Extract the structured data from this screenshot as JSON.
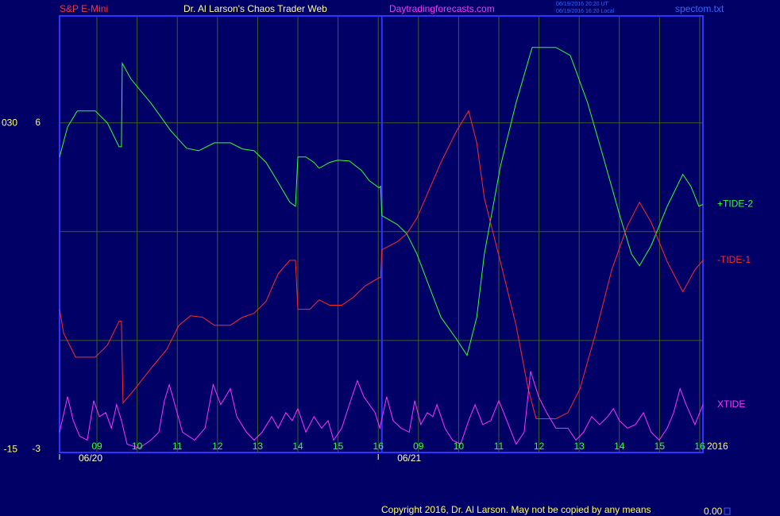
{
  "header": {
    "symbol": "S&P E-Mini",
    "title": "Dr. Al Larson's Chaos Trader Web",
    "site": "Daytradingforecasts.com",
    "time_ut": "06/19/2016 20:20 UT",
    "time_local": "06/19/2016 16:20 Local",
    "file": "spectom.txt"
  },
  "footer": {
    "copyright": "Copyright 2016, Dr. Al Larson. May not be copied by any means",
    "counter": "0.00"
  },
  "chart_data": {
    "type": "line",
    "xlim": [
      -0.93,
      15.08
    ],
    "ylim": [
      -3.09,
      8.95
    ],
    "y2lim": [
      -15.4,
      44.8
    ],
    "yticks": [
      6,
      -3
    ],
    "y2ticks": [
      {
        "value": 30,
        "label": "030"
      },
      -15
    ],
    "ygrid": [
      6,
      3,
      0
    ],
    "xticks": [
      {
        "value": 0,
        "label": "09"
      },
      {
        "value": 1,
        "label": "10"
      },
      {
        "value": 2,
        "label": "11"
      },
      {
        "value": 3,
        "label": "12"
      },
      {
        "value": 4,
        "label": "13"
      },
      {
        "value": 5,
        "label": "14"
      },
      {
        "value": 6,
        "label": "15"
      },
      {
        "value": 7,
        "label": "16"
      },
      {
        "value": 8,
        "label": "09"
      },
      {
        "value": 9,
        "label": "10"
      },
      {
        "value": 10,
        "label": "11"
      },
      {
        "value": 11,
        "label": "12"
      },
      {
        "value": 12,
        "label": "13"
      },
      {
        "value": 13,
        "label": "14"
      },
      {
        "value": 14,
        "label": "15"
      },
      {
        "value": 15,
        "label": "16"
      }
    ],
    "date_ticks": [
      {
        "value": -0.93,
        "label": "06/20"
      },
      {
        "value": 7.0,
        "label": "06/21"
      }
    ],
    "day_divider": 7.09,
    "year": "2016",
    "grid": true,
    "series": [
      {
        "name": "+TIDE-2",
        "color": "#33ff33",
        "x": [
          -0.93,
          -0.73,
          -0.49,
          -0.04,
          0.26,
          0.55,
          0.61,
          0.63,
          0.85,
          1.34,
          1.84,
          2.23,
          2.53,
          2.92,
          3.32,
          3.62,
          3.91,
          4.21,
          4.51,
          4.8,
          4.94,
          5.0,
          5.2,
          5.4,
          5.53,
          5.79,
          5.99,
          6.28,
          6.58,
          6.78,
          7.02,
          7.06,
          7.09,
          7.47,
          7.71,
          7.96,
          8.26,
          8.56,
          8.95,
          9.21,
          9.45,
          9.64,
          10.04,
          10.43,
          10.83,
          11.42,
          11.78,
          12.21,
          12.61,
          13.0,
          13.3,
          13.5,
          13.79,
          14.19,
          14.58,
          14.78,
          14.98,
          15.08
        ],
        "values": [
          5.06,
          5.89,
          6.33,
          6.33,
          6.0,
          5.34,
          5.34,
          7.64,
          7.2,
          6.55,
          5.78,
          5.3,
          5.23,
          5.45,
          5.45,
          5.28,
          5.23,
          4.91,
          4.36,
          3.81,
          3.7,
          5.06,
          5.06,
          4.91,
          4.75,
          4.91,
          4.97,
          4.95,
          4.69,
          4.4,
          4.21,
          4.25,
          3.44,
          3.2,
          2.94,
          2.39,
          1.51,
          0.64,
          0.03,
          -0.41,
          0.64,
          2.39,
          4.8,
          6.55,
          8.08,
          8.08,
          7.86,
          6.55,
          5.02,
          3.48,
          2.39,
          2.06,
          2.61,
          3.7,
          4.58,
          4.25,
          3.7,
          3.75
        ]
      },
      {
        "name": "-TIDE-1",
        "color": "#ff2a2a",
        "x": [
          -0.93,
          -0.83,
          -0.53,
          -0.04,
          0.26,
          0.55,
          0.61,
          0.65,
          0.95,
          1.34,
          1.74,
          2.04,
          2.33,
          2.63,
          2.92,
          3.32,
          3.62,
          3.91,
          4.21,
          4.51,
          4.8,
          4.94,
          5.0,
          5.3,
          5.53,
          5.79,
          6.09,
          6.38,
          6.68,
          7.02,
          7.06,
          7.09,
          7.47,
          7.71,
          7.96,
          8.26,
          8.56,
          8.95,
          9.25,
          9.45,
          9.64,
          10.04,
          10.43,
          10.73,
          10.93,
          11.42,
          11.72,
          12.02,
          12.41,
          12.81,
          13.2,
          13.5,
          13.79,
          14.19,
          14.58,
          14.88,
          15.08
        ],
        "values": [
          0.86,
          0.2,
          -0.46,
          -0.46,
          -0.13,
          0.53,
          0.53,
          -1.72,
          -1.33,
          -0.78,
          -0.24,
          0.42,
          0.68,
          0.64,
          0.42,
          0.42,
          0.64,
          0.75,
          1.08,
          1.84,
          2.21,
          2.21,
          0.86,
          0.86,
          1.12,
          0.97,
          0.97,
          1.19,
          1.51,
          1.73,
          1.73,
          2.5,
          2.72,
          2.94,
          3.37,
          4.14,
          4.91,
          5.78,
          6.33,
          5.45,
          3.92,
          2.17,
          0.42,
          -1.33,
          -2.16,
          -2.16,
          -1.99,
          -1.33,
          0.2,
          1.95,
          3.16,
          3.81,
          3.26,
          2.17,
          1.34,
          1.95,
          2.21
        ]
      },
      {
        "name": "XTIDE",
        "color": "#ff33ff",
        "x": [
          -0.93,
          -0.73,
          -0.59,
          -0.43,
          -0.24,
          -0.08,
          0.06,
          0.22,
          0.36,
          0.49,
          0.61,
          0.75,
          1.05,
          1.34,
          1.54,
          1.68,
          1.8,
          1.94,
          2.13,
          2.43,
          2.69,
          2.89,
          3.08,
          3.32,
          3.48,
          3.72,
          3.91,
          4.11,
          4.35,
          4.51,
          4.7,
          4.86,
          5.0,
          5.2,
          5.4,
          5.59,
          5.75,
          5.89,
          6.09,
          6.28,
          6.48,
          6.64,
          6.78,
          6.92,
          7.04,
          7.21,
          7.37,
          7.57,
          7.77,
          7.91,
          8.06,
          8.22,
          8.36,
          8.46,
          8.66,
          8.85,
          9.05,
          9.25,
          9.41,
          9.6,
          9.8,
          10.0,
          10.2,
          10.43,
          10.63,
          10.79,
          10.99,
          11.19,
          11.42,
          11.72,
          11.92,
          12.11,
          12.31,
          12.51,
          12.71,
          12.85,
          13.0,
          13.2,
          13.4,
          13.6,
          13.79,
          13.99,
          14.19,
          14.35,
          14.51,
          14.66,
          14.88,
          15.08
        ],
        "values": [
          -2.53,
          -1.55,
          -2.21,
          -2.64,
          -2.75,
          -1.66,
          -2.1,
          -1.99,
          -2.42,
          -1.77,
          -2.21,
          -2.86,
          -2.97,
          -2.75,
          -2.53,
          -1.66,
          -1.22,
          -1.77,
          -2.53,
          -2.75,
          -2.42,
          -1.22,
          -1.77,
          -1.33,
          -2.1,
          -2.53,
          -2.75,
          -2.53,
          -2.1,
          -2.42,
          -1.99,
          -2.21,
          -1.88,
          -2.53,
          -2.1,
          -2.42,
          -2.21,
          -2.75,
          -2.42,
          -1.77,
          -1.11,
          -1.55,
          -1.77,
          -1.99,
          -2.42,
          -1.55,
          -2.21,
          -2.42,
          -2.53,
          -1.66,
          -2.32,
          -1.99,
          -2.1,
          -1.77,
          -2.42,
          -2.75,
          -2.86,
          -2.21,
          -1.77,
          -2.32,
          -2.21,
          -1.66,
          -2.21,
          -2.86,
          -2.53,
          -0.85,
          -1.55,
          -1.99,
          -2.42,
          -2.42,
          -2.75,
          -2.53,
          -2.1,
          -2.32,
          -2.1,
          -1.88,
          -2.21,
          -2.42,
          -2.32,
          -1.99,
          -2.53,
          -2.75,
          -2.42,
          -1.99,
          -1.33,
          -1.77,
          -2.32,
          -1.77
        ]
      }
    ]
  }
}
